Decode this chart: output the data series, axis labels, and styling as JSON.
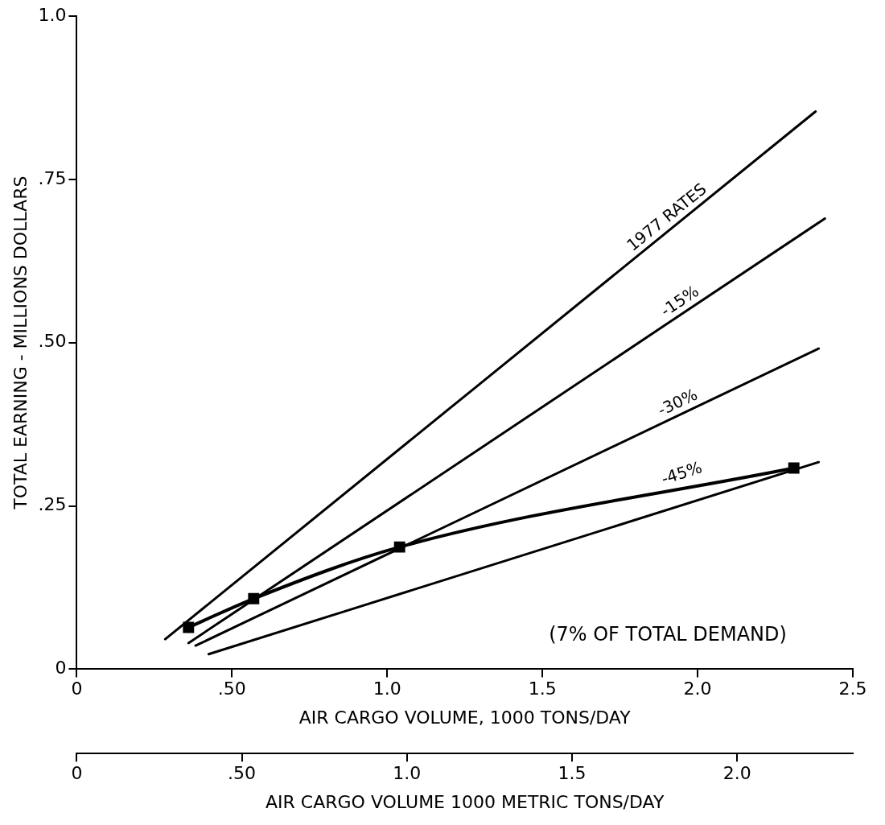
{
  "chart_data": {
    "type": "line",
    "xlabel": "AIR CARGO VOLUME, 1000 TONS/DAY",
    "ylabel": "TOTAL EARNING - MILLIONS DOLLARS",
    "x2label": "AIR CARGO VOLUME 1000 METRIC TONS/DAY",
    "xlim": [
      0,
      2.5
    ],
    "xticks": [
      0,
      {
        "value": 0.5,
        "label": ".50"
      },
      {
        "value": 1,
        "label": "1.0"
      },
      1.5,
      {
        "value": 2,
        "label": "2.0"
      },
      2.5
    ],
    "ylim": [
      0,
      1
    ],
    "yticks": [
      0,
      {
        "value": 0.25,
        "label": ".25"
      },
      {
        "value": 0.5,
        "label": ".50"
      },
      {
        "value": 0.75,
        "label": ".75"
      },
      {
        "value": 1,
        "label": "1.0"
      }
    ],
    "x2lim": [
      0,
      2.35
    ],
    "x2ticks": [
      0,
      {
        "value": 0.5,
        "label": ".50"
      },
      {
        "value": 1,
        "label": "1.0"
      },
      1.5,
      {
        "value": 2,
        "label": "2.0"
      }
    ],
    "grid": false,
    "legend": false,
    "marker": "none",
    "line_style": "solid",
    "annotations": [
      "(7% OF TOTAL DEMAND)"
    ],
    "series": [
      {
        "name": "1977 RATES",
        "color": "#000000",
        "x": [
          0.285,
          2.38
        ],
        "values": [
          0.046,
          0.854
        ]
      },
      {
        "name": "-15%",
        "color": "#000000",
        "x": [
          0.36,
          2.41
        ],
        "values": [
          0.04,
          0.69
        ]
      },
      {
        "name": "-30%",
        "color": "#000000",
        "x": [
          0.383,
          2.39
        ],
        "values": [
          0.036,
          0.491
        ]
      },
      {
        "name": "-45%",
        "color": "#000000",
        "x": [
          0.425,
          2.39
        ],
        "values": [
          0.023,
          0.317
        ]
      },
      {
        "color": "#000000",
        "marker": "square",
        "x": [
          0.36,
          0.57,
          1.04,
          2.31
        ],
        "values": [
          0.064,
          0.108,
          0.187,
          0.308
        ]
      }
    ]
  }
}
